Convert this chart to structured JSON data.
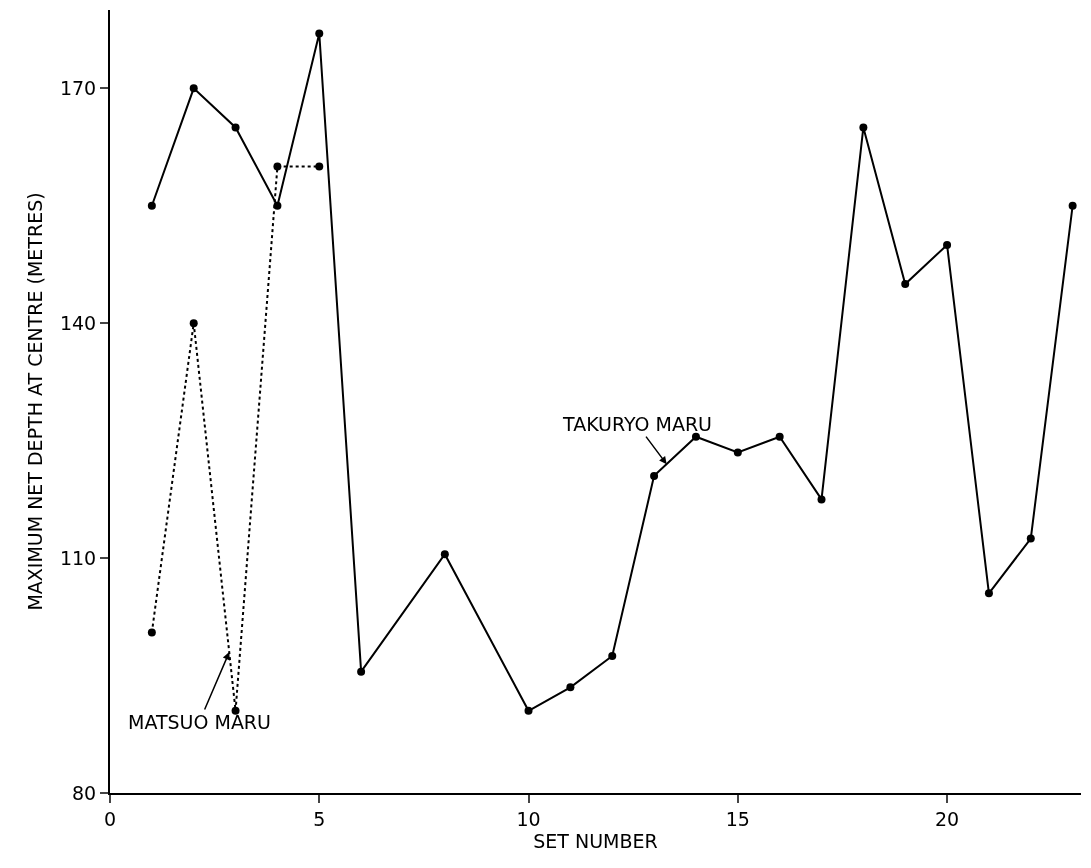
{
  "chart_data": {
    "type": "line",
    "xlabel": "SET NUMBER",
    "ylabel": "MAXIMUM NET DEPTH AT CENTRE (METRES)",
    "xlim": [
      0,
      23.2
    ],
    "ylim": [
      80,
      180
    ],
    "xticks": [
      0,
      5,
      10,
      15,
      20
    ],
    "yticks": [
      80,
      110,
      140,
      170
    ],
    "grid": false,
    "marker": "circle",
    "series": [
      {
        "color": "#000000",
        "line_style": "solid",
        "x": [
          1,
          2,
          3,
          4,
          5,
          6,
          8,
          10,
          11,
          12,
          13,
          14,
          15,
          16,
          17,
          18,
          19,
          20,
          21,
          22,
          23
        ],
        "values": [
          155,
          170,
          165,
          155,
          177,
          95.5,
          110.5,
          90.5,
          93.5,
          97.5,
          120.5,
          125.5,
          123.5,
          125.5,
          117.5,
          165,
          145,
          150,
          105.5,
          112.5,
          155
        ]
      },
      {
        "color": "#000000",
        "line_style": "dotted",
        "x": [
          1,
          2,
          3,
          4,
          5
        ],
        "values": [
          100.5,
          140,
          90.5,
          160,
          160
        ]
      }
    ],
    "annotations": [
      {
        "text": "TAKURYO MARU",
        "x": 13.3,
        "y": 122
      },
      {
        "text": "MATSUO MARU",
        "x": 2.85,
        "y": 98
      }
    ]
  }
}
